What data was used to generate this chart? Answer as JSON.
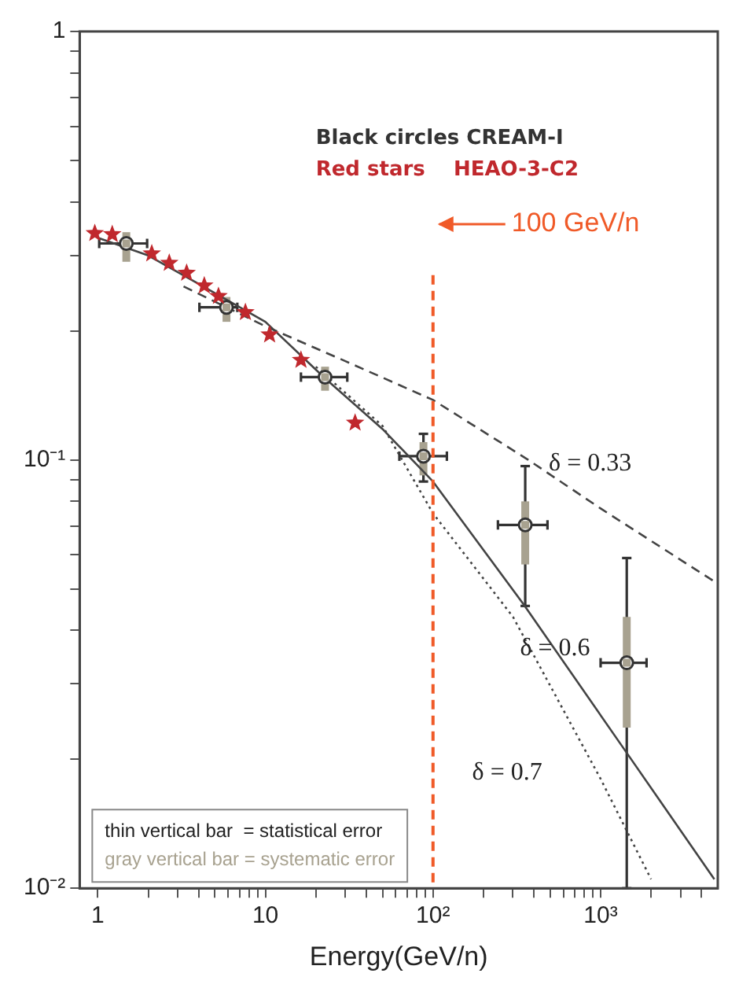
{
  "chart_data": {
    "type": "scatter",
    "xlabel": "Energy(GeV/n)",
    "log": "xy",
    "xlim": [
      0.78,
      5000
    ],
    "xticks": [
      1,
      {
        "value": 2,
        "label": null
      },
      {
        "value": 3,
        "label": null
      },
      {
        "value": 4,
        "label": null
      },
      {
        "value": 5,
        "label": null
      },
      {
        "value": 6,
        "label": null
      },
      {
        "value": 7,
        "label": null
      },
      {
        "value": 8,
        "label": null
      },
      {
        "value": 9,
        "label": null
      },
      10,
      {
        "value": 20,
        "label": null
      },
      {
        "value": 30,
        "label": null
      },
      {
        "value": 40,
        "label": null
      },
      {
        "value": 50,
        "label": null
      },
      {
        "value": 60,
        "label": null
      },
      {
        "value": 70,
        "label": null
      },
      {
        "value": 80,
        "label": null
      },
      {
        "value": 90,
        "label": null
      },
      {
        "value": 100,
        "label": "10²"
      },
      {
        "value": 200,
        "label": null
      },
      {
        "value": 300,
        "label": null
      },
      {
        "value": 400,
        "label": null
      },
      {
        "value": 500,
        "label": null
      },
      {
        "value": 600,
        "label": null
      },
      {
        "value": 700,
        "label": null
      },
      {
        "value": 800,
        "label": null
      },
      {
        "value": 900,
        "label": null
      },
      {
        "value": 1000,
        "label": "10³"
      },
      {
        "value": 2000,
        "label": null
      },
      {
        "value": 3000,
        "label": null
      },
      {
        "value": 4000,
        "label": null
      }
    ],
    "ylim": [
      0.01,
      1
    ],
    "yticks": [
      {
        "value": 0.01,
        "label": "10⁻²"
      },
      {
        "value": 0.02,
        "label": null
      },
      {
        "value": 0.03,
        "label": null
      },
      {
        "value": 0.04,
        "label": null
      },
      {
        "value": 0.05,
        "label": null
      },
      {
        "value": 0.06,
        "label": null
      },
      {
        "value": 0.07,
        "label": null
      },
      {
        "value": 0.08,
        "label": null
      },
      {
        "value": 0.09,
        "label": null
      },
      {
        "value": 0.1,
        "label": "10⁻¹"
      },
      {
        "value": 0.2,
        "label": null
      },
      {
        "value": 0.3,
        "label": null
      },
      {
        "value": 0.4,
        "label": null
      },
      {
        "value": 0.5,
        "label": null
      },
      {
        "value": 0.6,
        "label": null
      },
      {
        "value": 0.7,
        "label": null
      },
      {
        "value": 0.8,
        "label": null
      },
      {
        "value": 0.9,
        "label": null
      },
      1
    ],
    "series": [
      {
        "marker": "circle",
        "color": "#333333",
        "x": [
          1.48,
          5.86,
          22.7,
          87.7,
          355,
          1432
        ],
        "values": [
          0.32,
          0.227,
          0.156,
          0.102,
          0.0705,
          0.0336
        ],
        "errors": [
          null,
          null,
          null,
          [
            0.089,
            0.115
          ],
          [
            0.0456,
            0.0967
          ],
          [
            0.01,
            0.059
          ]
        ],
        "xerrors": [
          [
            1.02,
            1.97
          ],
          [
            4.04,
            6.8
          ],
          [
            16.3,
            30.8
          ],
          [
            63,
            121
          ],
          [
            244,
            482
          ],
          [
            1000,
            1880
          ]
        ]
      },
      {
        "marker": "square",
        "color": "#a8a290",
        "x": [
          1.48,
          5.86,
          22.7,
          87.7,
          355,
          1432
        ],
        "values": [
          0.32,
          0.227,
          0.156,
          0.102,
          0.0705,
          0.0336
        ],
        "errors": [
          [
            0.29,
            0.34
          ],
          [
            0.21,
            0.24
          ],
          [
            0.145,
            0.165
          ],
          [
            0.092,
            0.11
          ],
          [
            0.057,
            0.08
          ],
          [
            0.0237,
            0.043
          ]
        ]
      },
      {
        "marker": "star",
        "color": "#c0282d",
        "x": [
          0.96,
          1.22,
          2.1,
          2.67,
          3.39,
          4.32,
          5.25,
          7.6,
          10.6,
          16.3,
          34.3
        ],
        "values": [
          0.338,
          0.336,
          0.303,
          0.288,
          0.273,
          0.255,
          0.241,
          0.221,
          0.196,
          0.171,
          0.122
        ]
      },
      {
        "type": "line",
        "line_style": "solid",
        "color": "#444444",
        "x": [
          1,
          2,
          5,
          10,
          22.7,
          50,
          100,
          347,
          1432,
          4770
        ],
        "values": [
          0.33,
          0.3,
          0.245,
          0.21,
          0.155,
          0.118,
          0.089,
          0.046,
          0.0207,
          0.0105
        ]
      },
      {
        "type": "line",
        "line_style": "dashed",
        "color": "#444444",
        "x": [
          3.25,
          10,
          30,
          100,
          370,
          1000,
          4770
        ],
        "values": [
          0.254,
          0.205,
          0.17,
          0.138,
          0.1,
          0.077,
          0.052
        ]
      },
      {
        "type": "line",
        "line_style": "dotted",
        "color": "#444444",
        "x": [
          20,
          50,
          100,
          300,
          1000,
          2000
        ],
        "values": [
          0.165,
          0.12,
          0.075,
          0.043,
          0.018,
          0.0105
        ]
      }
    ],
    "ref_lines": [
      {
        "axis": "x",
        "value": 100,
        "label": "100 GeV/n",
        "color": "#f05a28",
        "line_style": "dashed"
      }
    ],
    "annotations": [
      "Black circles CREAM-I",
      "Red stars    HEAO-3-C2",
      "thin vertical bar  = statistical error",
      "gray vertical bar = systematic error",
      "δ = 0.33",
      "δ = 0.6",
      "δ = 0.7"
    ]
  }
}
